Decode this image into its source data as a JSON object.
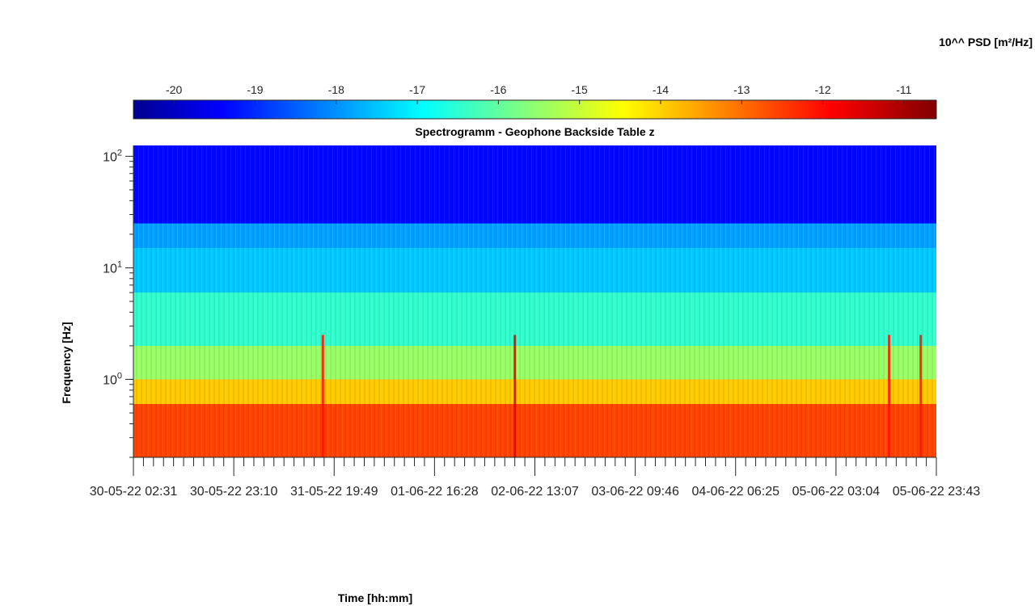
{
  "chart_data": {
    "type": "heatmap",
    "title": "Spectrogramm - Geophone Backside Table z",
    "xlabel": "Time [hh:mm]",
    "ylabel": "Frequency [Hz]",
    "x_ticks": [
      "30-05-22 02:31",
      "30-05-22 23:10",
      "31-05-22 19:49",
      "01-06-22 16:28",
      "02-06-22 13:07",
      "03-06-22 09:46",
      "04-06-22 06:25",
      "05-06-22 03:04",
      "05-06-22 23:43"
    ],
    "y_scale": "log",
    "y_ticks": [
      {
        "base": "10",
        "exp": "0",
        "value": 1
      },
      {
        "base": "10",
        "exp": "1",
        "value": 10
      },
      {
        "base": "10",
        "exp": "2",
        "value": 100
      }
    ],
    "ylim": [
      0.2,
      125
    ],
    "colorbar": {
      "label": "10^^ PSD [m²/Hz]",
      "ticks": [
        "-20",
        "-19",
        "-18",
        "-17",
        "-16",
        "-15",
        "-14",
        "-13",
        "-12",
        "-11"
      ],
      "range": [
        -20.5,
        -10.6
      ],
      "colormap": "jet",
      "position": "top"
    },
    "bands": [
      {
        "f_low": 25,
        "f_high": 125,
        "log10_psd": -19.2
      },
      {
        "f_low": 15,
        "f_high": 25,
        "log10_psd": -17.7
      },
      {
        "f_low": 6,
        "f_high": 15,
        "log10_psd": -17.3
      },
      {
        "f_low": 2,
        "f_high": 6,
        "log10_psd": -16.3
      },
      {
        "f_low": 1,
        "f_high": 2,
        "log10_psd": -15.3
      },
      {
        "f_low": 0.6,
        "f_high": 1,
        "log10_psd": -13.8
      },
      {
        "f_low": 0.2,
        "f_high": 0.6,
        "log10_psd": -12.5
      }
    ],
    "events": [
      {
        "time": "31-05-22 17:30",
        "log10_psd": -12
      },
      {
        "time": "02-06-22 09:00",
        "log10_psd": -11.5
      },
      {
        "time": "05-06-22 14:00",
        "log10_psd": -12
      },
      {
        "time": "05-06-22 20:30",
        "log10_psd": -12
      }
    ]
  }
}
